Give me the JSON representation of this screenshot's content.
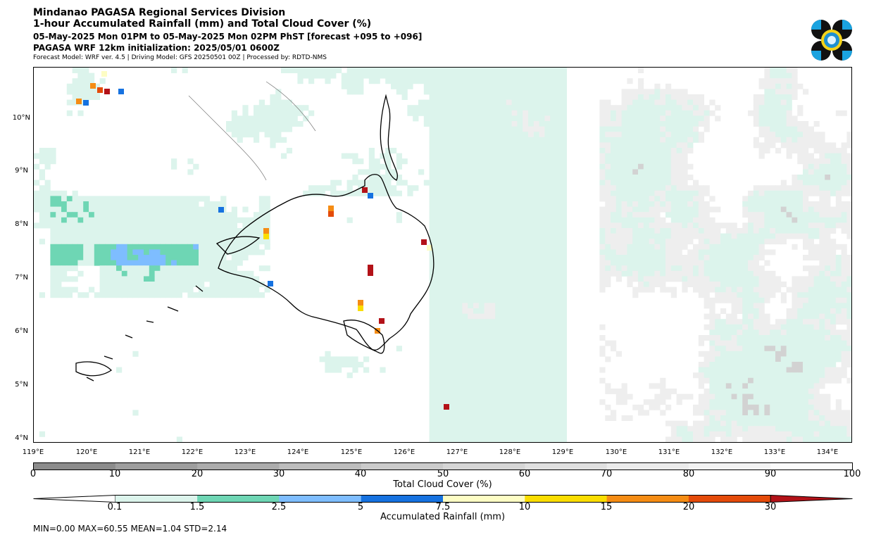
{
  "header": {
    "org": "Mindanao PAGASA Regional Services Division",
    "product": "1-hour Accumulated Rainfall (mm) and Total Cloud Cover (%)",
    "valid": "05-May-2025 Mon 01PM to 05-May-2025 Mon 02PM PhST [forecast +095 to +096]",
    "init": "PAGASA WRF 12km initialization: 2025/05/01 0600Z",
    "model": "Forecast Model: WRF ver. 4.5 | Driving Model: GFS 20250501 00Z | Processed by: RDTD-NMS"
  },
  "map": {
    "lat_labels": [
      "10°N",
      "9°N",
      "8°N",
      "7°N",
      "6°N",
      "5°N",
      "4°N"
    ],
    "lon_labels": [
      "119°E",
      "120°E",
      "121°E",
      "122°E",
      "123°E",
      "124°E",
      "125°E",
      "126°E",
      "127°E",
      "128°E",
      "129°E",
      "130°E",
      "131°E",
      "132°E",
      "133°E",
      "134°E"
    ]
  },
  "cloud_bar": {
    "title": "Total Cloud Cover (%)",
    "ticks": [
      "0",
      "10",
      "20",
      "30",
      "40",
      "50",
      "60",
      "70",
      "80",
      "90",
      "100"
    ],
    "colors": [
      "#8c8c8c",
      "#9e9e9e",
      "#acacac",
      "#bdbdbd",
      "#cbcbcb",
      "#d6d6d6",
      "#e0e0e0",
      "#ebebeb",
      "#f3f3f3",
      "#fbfbfb"
    ]
  },
  "rain_bar": {
    "title": "Accumulated Rainfall (mm)",
    "ticks": [
      "0.1",
      "1.5",
      "2.5",
      "5",
      "7.5",
      "10",
      "15",
      "20",
      "30"
    ],
    "colors": [
      "#ffffff",
      "#dcf4ec",
      "#6ed6b4",
      "#7ebdff",
      "#1672e0",
      "#fdfdc4",
      "#fadd00",
      "#f58c14",
      "#e44b0a",
      "#b31218"
    ]
  },
  "stats": "MIN=0.00   MAX=60.55   MEAN=1.04   STD=2.14"
}
